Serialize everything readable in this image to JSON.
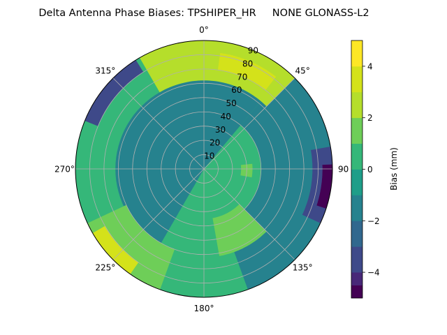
{
  "chart_data": {
    "type": "heatmap",
    "subtype": "polar-filled-contour",
    "title": "Delta Antenna Phase Biases: TPSHIPER_HR     NONE GLONASS-L2",
    "theta_zero_location": "top",
    "theta_direction": "clockwise",
    "theta_ticks": [
      {
        "deg": 0,
        "label": "0°"
      },
      {
        "deg": 45,
        "label": "45°"
      },
      {
        "deg": 90,
        "label": "90"
      },
      {
        "deg": 135,
        "label": "135°"
      },
      {
        "deg": 180,
        "label": "180°"
      },
      {
        "deg": 225,
        "label": "225°"
      },
      {
        "deg": 270,
        "label": "270°"
      },
      {
        "deg": 315,
        "label": "315°"
      }
    ],
    "r_ticks": [
      10,
      20,
      30,
      40,
      50,
      60,
      70,
      80,
      90
    ],
    "r_tick_labels": [
      "10",
      "20",
      "30",
      "40",
      "50",
      "60",
      "70",
      "80",
      "90"
    ],
    "r_range": [
      0,
      90
    ],
    "grid": true,
    "colorbar": {
      "label": "Bias (mm)",
      "range": [
        -5,
        5
      ],
      "ticks": [
        -4,
        -2,
        0,
        2,
        4
      ],
      "tick_labels": [
        "−4",
        "−2",
        "0",
        "2",
        "4"
      ],
      "levels": [
        -5,
        -4.5,
        -4,
        -3,
        -2,
        -1,
        0,
        1,
        2,
        3,
        4,
        4.5,
        5
      ],
      "colors": [
        "#440154",
        "#482878",
        "#3e4989",
        "#31688e",
        "#26828e",
        "#1f9e89",
        "#35b779",
        "#6ece58",
        "#b5de2b",
        "#d4e21a",
        "#fde725",
        "#fde725"
      ],
      "placement": "right"
    },
    "regions": [
      {
        "name": "base-field",
        "value": 0.5
      },
      {
        "name": "center-dark",
        "value": -1.2,
        "theta": [
          210,
          360
        ],
        "r": [
          0,
          62
        ]
      },
      {
        "name": "center-dark-2",
        "value": -1.2,
        "theta": [
          0,
          40
        ],
        "r": [
          0,
          62
        ]
      },
      {
        "name": "east-dark",
        "value": -1.8,
        "theta": [
          40,
          160
        ],
        "r": [
          40,
          90
        ]
      },
      {
        "name": "east-darker",
        "value": -3.2,
        "theta": [
          80,
          115
        ],
        "r": [
          76,
          90
        ]
      },
      {
        "name": "east-darkest",
        "value": -4.7,
        "theta": [
          88,
          108
        ],
        "r": [
          83,
          90
        ]
      },
      {
        "name": "northwest-dark",
        "value": -3.2,
        "theta": [
          292,
          328
        ],
        "r": [
          80,
          90
        ]
      },
      {
        "name": "north-green",
        "value": 2.5,
        "theta": [
          330,
          45
        ],
        "r": [
          62,
          90
        ]
      },
      {
        "name": "north-light",
        "value": 3.2,
        "theta": [
          8,
          38
        ],
        "r": [
          70,
          82
        ]
      },
      {
        "name": "north-lightest",
        "value": 3.8,
        "theta": [
          16,
          26
        ],
        "r": [
          76,
          80
        ]
      },
      {
        "name": "southeast-green",
        "value": 1.8,
        "theta": [
          135,
          170
        ],
        "r": [
          35,
          62
        ]
      },
      {
        "name": "southwest-green",
        "value": 1.8,
        "theta": [
          200,
          245
        ],
        "r": [
          60,
          90
        ]
      },
      {
        "name": "southwest-light",
        "value": 3.0,
        "theta": [
          215,
          240
        ],
        "r": [
          80,
          90
        ]
      },
      {
        "name": "east-green-spot",
        "value": 1.8,
        "theta": [
          84,
          100
        ],
        "r": [
          26,
          34
        ]
      }
    ]
  }
}
